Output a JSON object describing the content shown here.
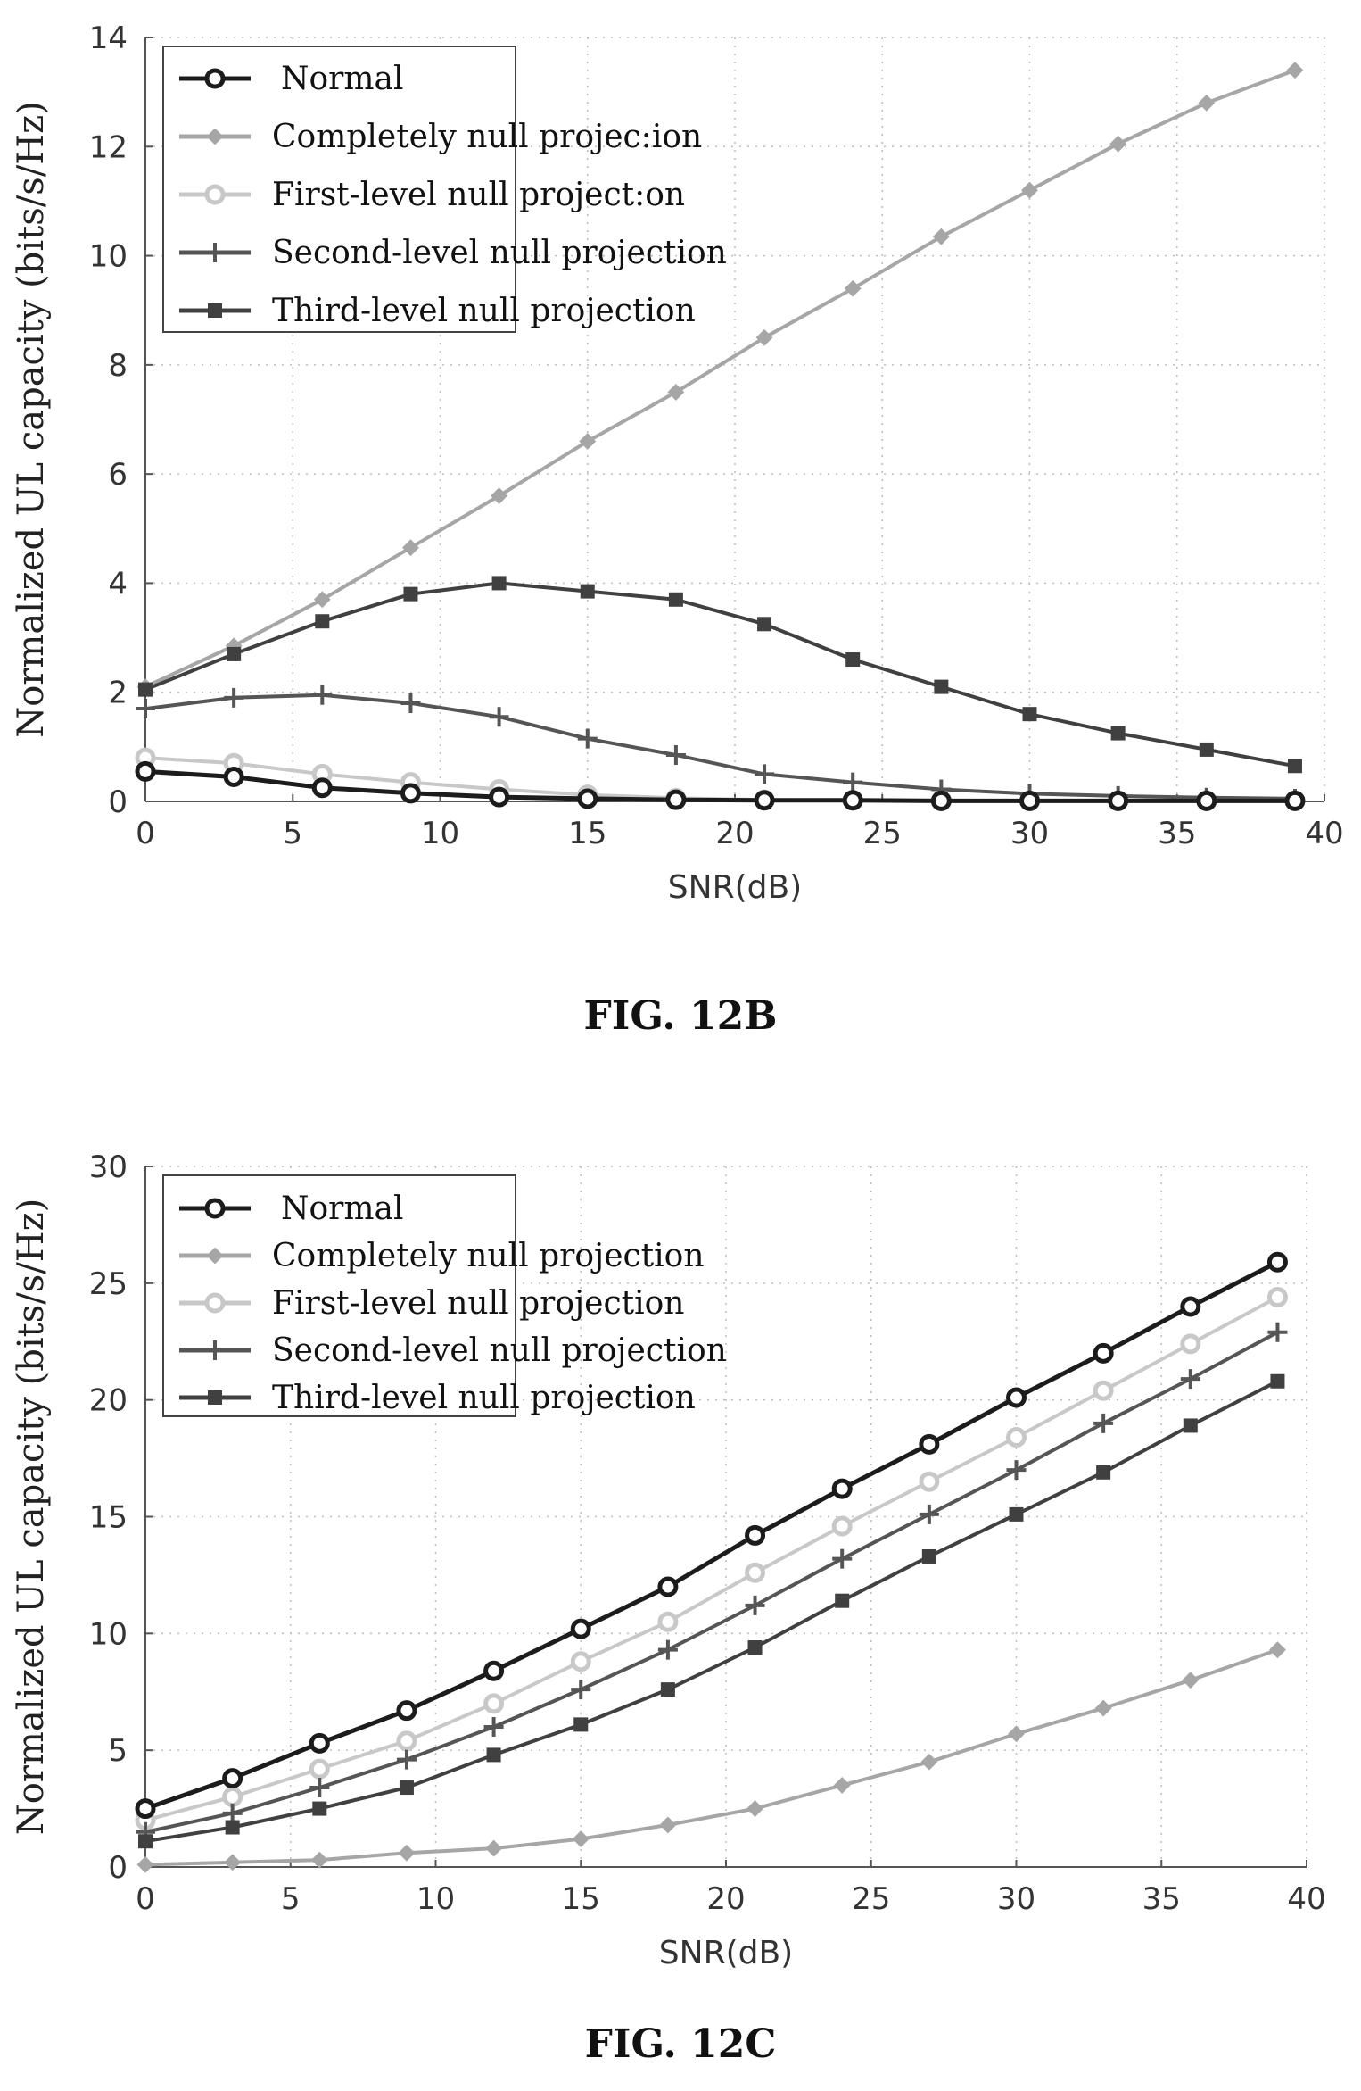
{
  "figures": [
    {
      "caption": "FIG. 12B",
      "chart_data": {
        "type": "line",
        "xlabel": "SNR(dB)",
        "ylabel": "Normalized UL capacity (bits/s/Hz)",
        "xlim": [
          0,
          40
        ],
        "ylim": [
          0,
          14
        ],
        "xticks": [
          0,
          5,
          10,
          15,
          20,
          25,
          30,
          35,
          40
        ],
        "yticks": [
          0,
          2,
          4,
          6,
          8,
          10,
          12,
          14
        ],
        "grid": "dotted",
        "legend_position": "top-left",
        "x": [
          0,
          3,
          6,
          9,
          12,
          15,
          18,
          21,
          24,
          27,
          30,
          33,
          36,
          39
        ],
        "series": [
          {
            "name": "Normal",
            "label_text": "Normal",
            "color": "#1c1c1c",
            "marker": "open-circle",
            "values": [
              0.55,
              0.45,
              0.25,
              0.15,
              0.08,
              0.05,
              0.03,
              0.02,
              0.02,
              0.01,
              0.01,
              0.01,
              0.01,
              0.01
            ]
          },
          {
            "name": "Completely null projection",
            "label_text": "Completely null projec:ion",
            "color": "#a6a6a6",
            "marker": "diamond",
            "values": [
              2.1,
              2.85,
              3.7,
              4.65,
              5.6,
              6.6,
              7.5,
              8.5,
              9.4,
              10.35,
              11.2,
              12.05,
              12.8,
              13.4
            ]
          },
          {
            "name": "First-level null projection",
            "label_text": "First-level null project:on",
            "color": "#c8c8c8",
            "marker": "open-circle",
            "values": [
              0.8,
              0.7,
              0.5,
              0.35,
              0.22,
              0.12,
              0.06,
              0.03,
              0.02,
              0.01,
              0.01,
              0.01,
              0.01,
              0.01
            ]
          },
          {
            "name": "Second-level null projection",
            "label_text": "Second-level null projection",
            "color": "#555555",
            "marker": "plus",
            "values": [
              1.7,
              1.9,
              1.95,
              1.8,
              1.55,
              1.15,
              0.85,
              0.5,
              0.35,
              0.22,
              0.14,
              0.1,
              0.07,
              0.05
            ]
          },
          {
            "name": "Third-level null projection",
            "label_text": "Third-level null projection",
            "color": "#404040",
            "marker": "square",
            "values": [
              2.05,
              2.7,
              3.3,
              3.8,
              4.0,
              3.85,
              3.7,
              3.25,
              2.6,
              2.1,
              1.6,
              1.25,
              0.95,
              0.65
            ]
          }
        ]
      }
    },
    {
      "caption": "FIG. 12C",
      "chart_data": {
        "type": "line",
        "xlabel": "SNR(dB)",
        "ylabel": "Normalized UL capacity (bits/s/Hz)",
        "xlim": [
          0,
          40
        ],
        "ylim": [
          0,
          30
        ],
        "xticks": [
          0,
          5,
          10,
          15,
          20,
          25,
          30,
          35,
          40
        ],
        "yticks": [
          0,
          5,
          10,
          15,
          20,
          25,
          30
        ],
        "grid": "dotted",
        "legend_position": "top-left",
        "x": [
          0,
          3,
          6,
          9,
          12,
          15,
          18,
          21,
          24,
          27,
          30,
          33,
          36,
          39
        ],
        "series": [
          {
            "name": "Normal",
            "label_text": "Normal",
            "color": "#1c1c1c",
            "marker": "open-circle",
            "values": [
              2.5,
              3.8,
              5.3,
              6.7,
              8.4,
              10.2,
              12.0,
              14.2,
              16.2,
              18.1,
              20.1,
              22.0,
              24.0,
              25.9
            ]
          },
          {
            "name": "Completely null projection",
            "label_text": "Completely null projection",
            "color": "#a6a6a6",
            "marker": "diamond",
            "values": [
              0.1,
              0.2,
              0.3,
              0.6,
              0.8,
              1.2,
              1.8,
              2.5,
              3.5,
              4.5,
              5.7,
              6.8,
              8.0,
              9.3
            ]
          },
          {
            "name": "First-level null projection",
            "label_text": "First-level null projection",
            "color": "#c8c8c8",
            "marker": "open-circle",
            "values": [
              2.0,
              3.0,
              4.2,
              5.4,
              7.0,
              8.8,
              10.5,
              12.6,
              14.6,
              16.5,
              18.4,
              20.4,
              22.4,
              24.4
            ]
          },
          {
            "name": "Second-level null projection",
            "label_text": "Second-level null projection",
            "color": "#555555",
            "marker": "plus",
            "values": [
              1.5,
              2.3,
              3.4,
              4.6,
              6.0,
              7.6,
              9.3,
              11.2,
              13.2,
              15.1,
              17.0,
              19.0,
              20.9,
              22.9
            ]
          },
          {
            "name": "Third-level null projection",
            "label_text": "Third-level null projection",
            "color": "#404040",
            "marker": "square",
            "values": [
              1.1,
              1.7,
              2.5,
              3.4,
              4.8,
              6.1,
              7.6,
              9.4,
              11.4,
              13.3,
              15.1,
              16.9,
              18.9,
              20.8
            ]
          }
        ]
      }
    }
  ]
}
